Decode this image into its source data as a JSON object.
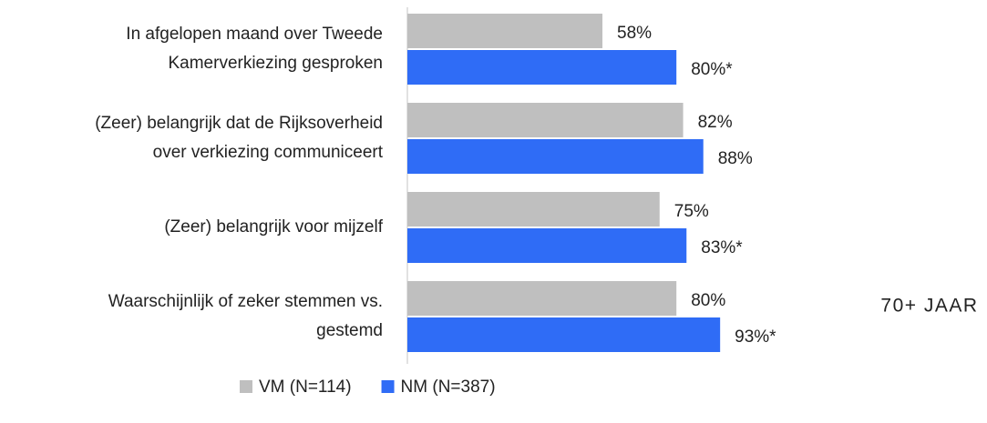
{
  "chart_data": {
    "type": "hbar",
    "categories": [
      "In  afgelopen maand over Tweede\nKamerverkiezing gesproken",
      "(Zeer) belangrijk dat de Rijksoverheid\nover verkiezing communiceert",
      "(Zeer) belangrijk voor mijzelf",
      "Waarschijnlijk of zeker stemmen vs.\ngestemd"
    ],
    "series": [
      {
        "name": "VM (N=114)",
        "color": "#bfbfbf",
        "values": [
          58,
          82,
          75,
          80
        ],
        "value_labels": [
          "58%",
          "82%",
          "75%",
          "80%"
        ]
      },
      {
        "name": "NM (N=387)",
        "color": "#2f6cf6",
        "values": [
          80,
          88,
          83,
          93
        ],
        "value_labels": [
          "80%*",
          "88%",
          "83%*",
          "93%*"
        ]
      }
    ],
    "xlim": [
      0,
      100
    ],
    "annotation": "70+ JAAR"
  }
}
